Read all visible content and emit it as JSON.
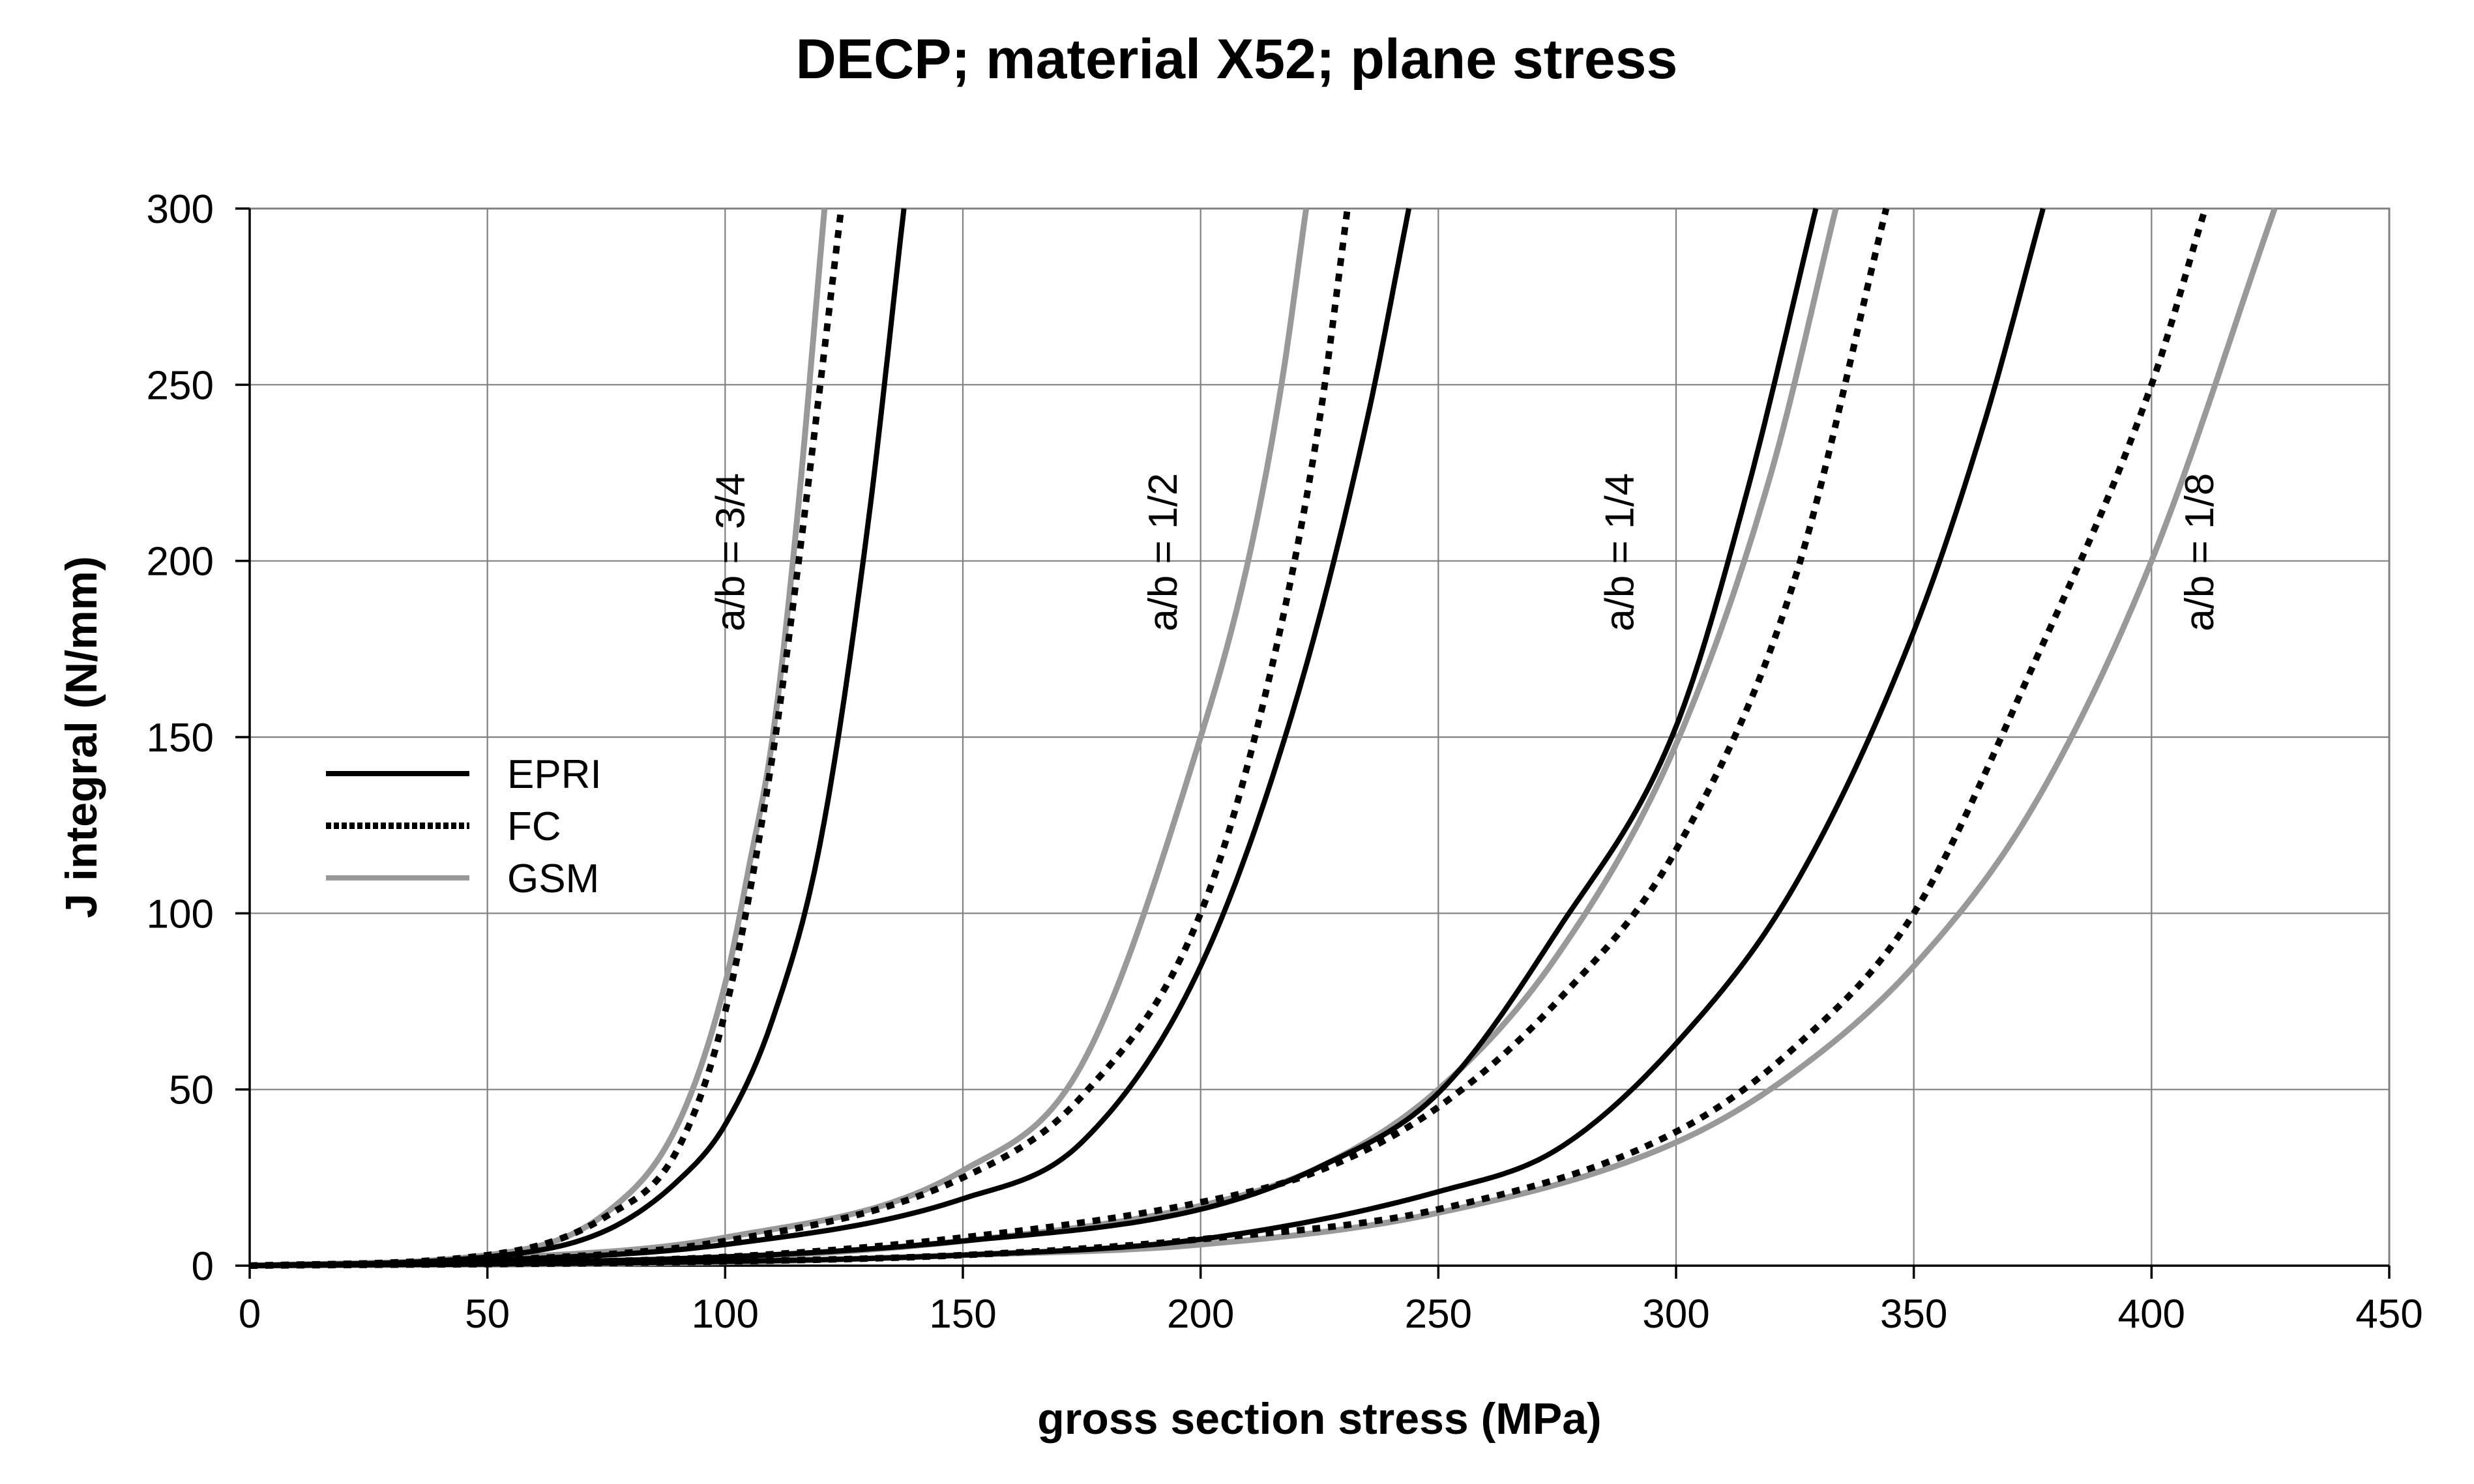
{
  "chart_data": {
    "type": "line",
    "title": "DECP; material X52; plane stress",
    "xlabel": "gross section stress (MPa)",
    "ylabel": "J integral (N/mm)",
    "xlim": [
      0,
      450
    ],
    "ylim": [
      0,
      300
    ],
    "xticks": [
      "0",
      "50",
      "100",
      "150",
      "200",
      "250",
      "300",
      "350",
      "400",
      "450"
    ],
    "yticks": [
      "0",
      "50",
      "100",
      "150",
      "200",
      "250",
      "300"
    ],
    "grid": true,
    "legend": {
      "position": "left",
      "entries": [
        {
          "name": "EPRI",
          "style": "solid",
          "color": "#000000"
        },
        {
          "name": "FC",
          "style": "dotted",
          "color": "#000000"
        },
        {
          "name": "GSM",
          "style": "solid",
          "color": "#999999"
        }
      ]
    },
    "annotations": [
      {
        "text": "a/b = 3/4",
        "x": 104,
        "y": 180
      },
      {
        "text": "a/b = 1/2",
        "x": 195,
        "y": 180
      },
      {
        "text": "a/b = 1/4",
        "x": 291,
        "y": 180
      },
      {
        "text": "a/b = 1/8",
        "x": 413,
        "y": 180
      }
    ],
    "series": [
      {
        "name": "EPRI",
        "group": "a/b = 3/4",
        "x": [
          0,
          50,
          75,
          90,
          100,
          110,
          120,
          130,
          137.6
        ],
        "y": [
          0,
          2.5,
          10,
          24,
          40,
          70,
          120,
          210,
          300
        ]
      },
      {
        "name": "FC",
        "group": "a/b = 3/4",
        "x": [
          0,
          50,
          75,
          90,
          100,
          110,
          115,
          120,
          124.4
        ],
        "y": [
          0,
          3,
          14,
          33,
          72,
          145,
          195,
          250,
          300
        ]
      },
      {
        "name": "GSM",
        "group": "a/b = 3/4",
        "x": [
          0,
          50,
          75,
          90,
          100,
          105,
          110,
          115,
          120.9
        ],
        "y": [
          0,
          3,
          15,
          40,
          80,
          113,
          150,
          210,
          300
        ]
      },
      {
        "name": "EPRI",
        "group": "a/b = 1/2",
        "x": [
          0,
          50,
          100,
          150,
          175,
          200,
          220,
          235,
          243.8
        ],
        "y": [
          0,
          1.5,
          6,
          19,
          35,
          85,
          160,
          240,
          300
        ]
      },
      {
        "name": "FC",
        "group": "a/b = 1/2",
        "x": [
          0,
          50,
          100,
          150,
          175,
          200,
          215,
          225,
          230.9
        ],
        "y": [
          0,
          1.5,
          7,
          25,
          48,
          100,
          170,
          240,
          300
        ]
      },
      {
        "name": "GSM",
        "group": "a/b = 1/2",
        "x": [
          0,
          50,
          100,
          150,
          175,
          200,
          210,
          217,
          222.2
        ],
        "y": [
          0,
          2,
          8,
          27,
          57,
          150,
          200,
          250,
          300
        ]
      },
      {
        "name": "EPRI",
        "group": "a/b = 1/4",
        "x": [
          0,
          100,
          150,
          200,
          225,
          250,
          275,
          300,
          315,
          329.4
        ],
        "y": [
          0,
          2.5,
          7,
          16,
          28,
          49,
          95,
          153,
          220,
          300
        ]
      },
      {
        "name": "FC",
        "group": "a/b = 1/4",
        "x": [
          0,
          100,
          150,
          200,
          225,
          250,
          275,
          300,
          325,
          344.2
        ],
        "y": [
          0,
          2.5,
          8,
          18,
          27,
          45,
          75,
          118,
          195,
          300
        ]
      },
      {
        "name": "GSM",
        "group": "a/b = 1/4",
        "x": [
          0,
          100,
          150,
          200,
          225,
          250,
          275,
          300,
          320,
          333.6
        ],
        "y": [
          0,
          2.2,
          7,
          17,
          28,
          50,
          88,
          148,
          225,
          300
        ]
      },
      {
        "name": "EPRI",
        "group": "a/b = 1/8",
        "x": [
          0,
          100,
          150,
          200,
          250,
          275,
          300,
          325,
          350,
          365,
          377.2
        ],
        "y": [
          0,
          1.2,
          3,
          7.5,
          21,
          33,
          63,
          108,
          180,
          240,
          300
        ]
      },
      {
        "name": "FC",
        "group": "a/b = 1/8",
        "x": [
          0,
          100,
          150,
          200,
          250,
          300,
          325,
          350,
          375,
          400,
          411.3
        ],
        "y": [
          0,
          1.2,
          3,
          7.5,
          16,
          38,
          62,
          100,
          170,
          250,
          300
        ]
      },
      {
        "name": "GSM",
        "group": "a/b = 1/8",
        "x": [
          0,
          100,
          150,
          200,
          250,
          300,
          325,
          350,
          375,
          400,
          425.9
        ],
        "y": [
          0,
          1,
          3,
          6,
          15,
          35,
          55,
          85,
          130,
          200,
          300
        ]
      }
    ]
  }
}
